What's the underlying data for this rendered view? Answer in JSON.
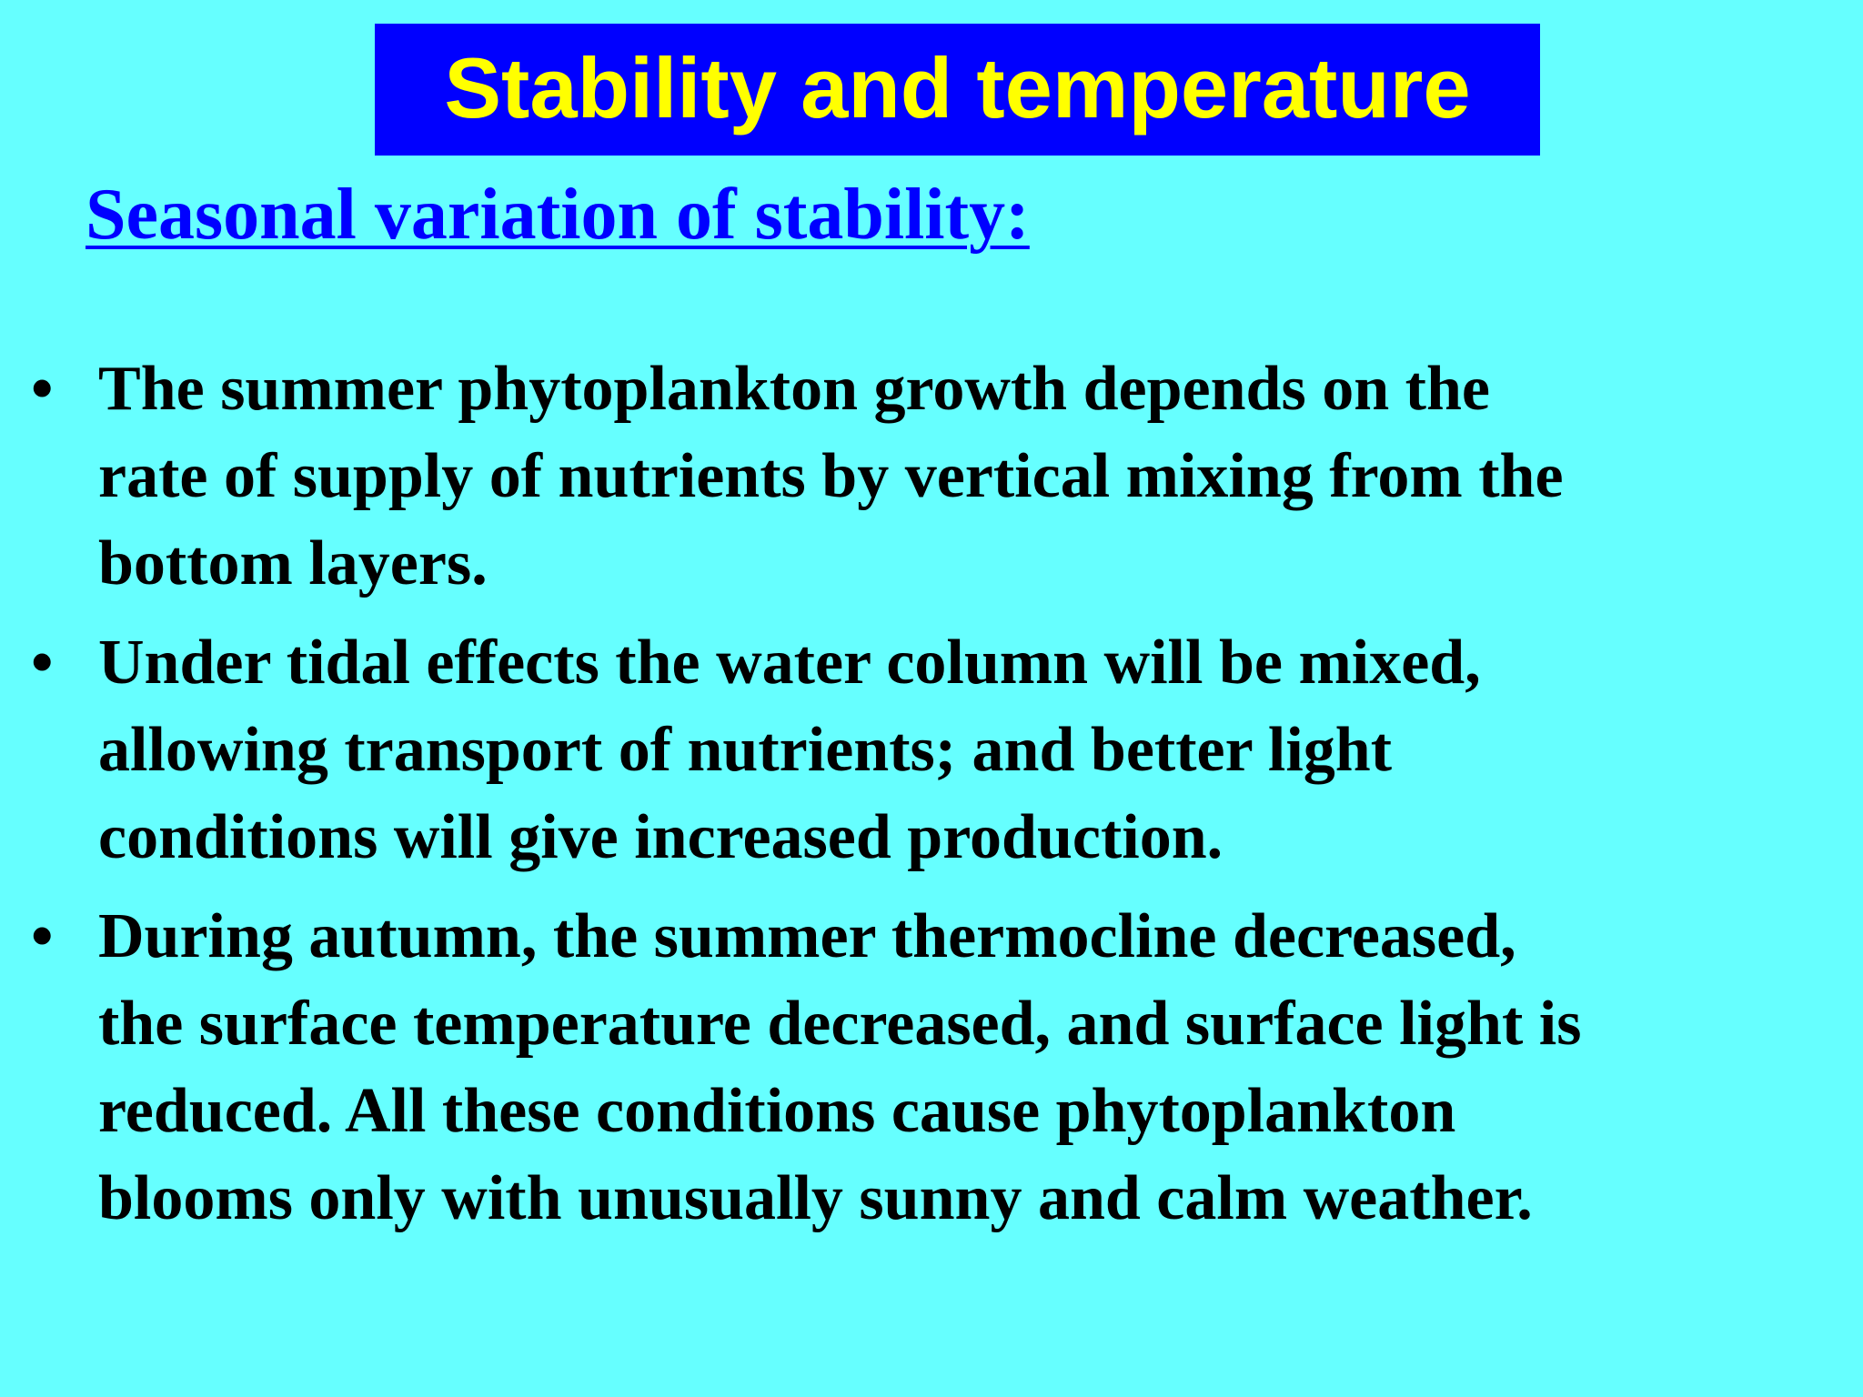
{
  "slide": {
    "title": "Stability and temperature",
    "subtitle": "Seasonal variation of stability:",
    "bullet_symbol": "•",
    "bullets": [
      {
        "lines": [
          "The summer phytoplankton growth depends on the",
          "rate of supply of nutrients by vertical mixing from the",
          "bottom layers."
        ]
      },
      {
        "lines": [
          "Under tidal effects the water column will be mixed,",
          "allowing transport of nutrients; and better light",
          "conditions will give increased production."
        ]
      },
      {
        "lines": [
          "During autumn, the summer thermocline decreased,",
          "the surface temperature decreased, and surface light is",
          "reduced. All these conditions cause phytoplankton",
          "blooms only with unusually sunny and calm weather."
        ]
      }
    ],
    "colors": {
      "background": "#66FFFF",
      "title_box": "#0000FF",
      "title_text": "#FFFF00",
      "subtitle_text": "#0000FF",
      "body_text": "#000000"
    }
  }
}
